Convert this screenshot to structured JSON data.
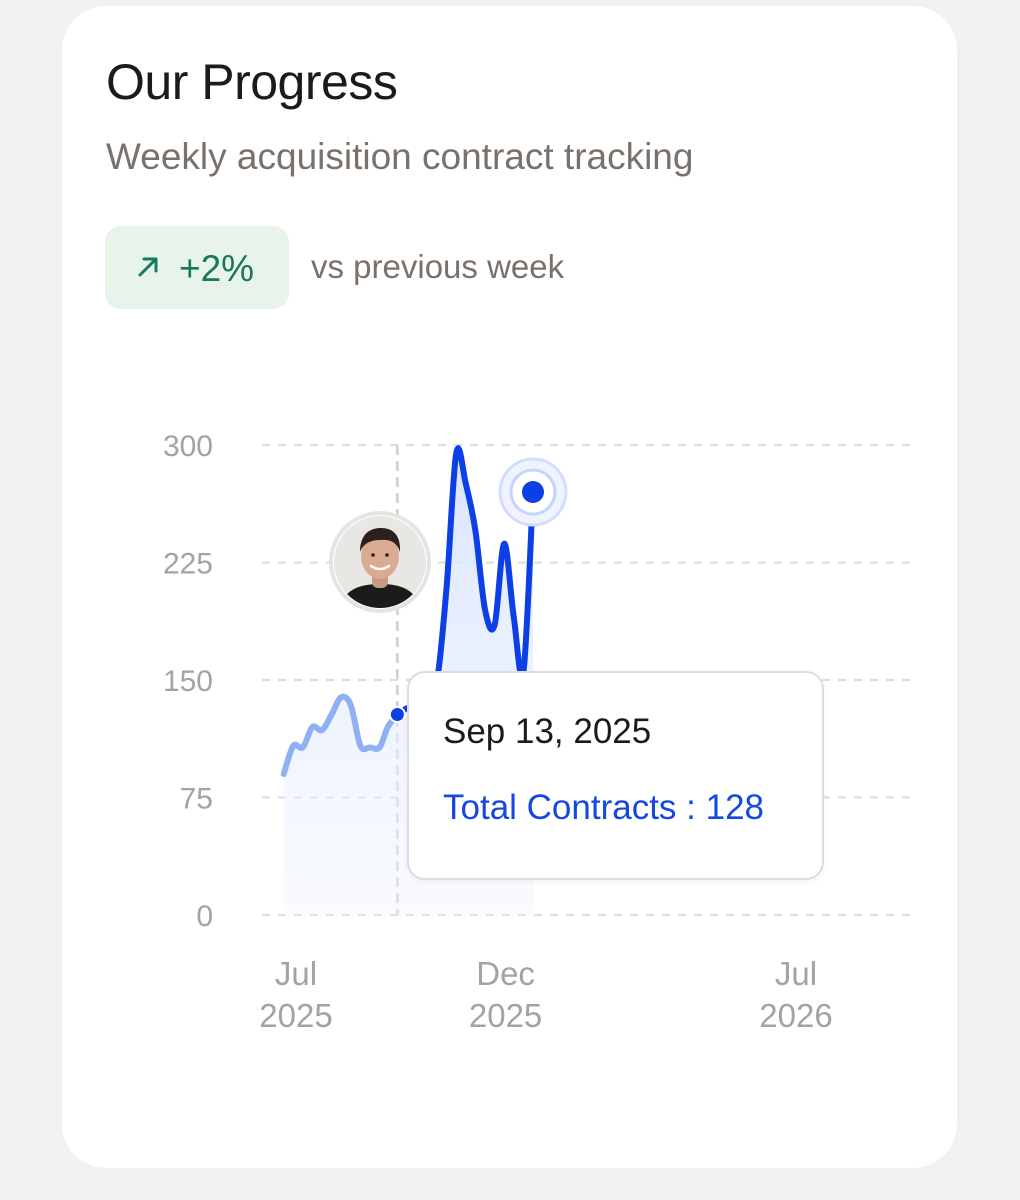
{
  "header": {
    "title": "Our Progress",
    "subtitle": "Weekly acquisition contract tracking"
  },
  "badge": {
    "icon": "arrow-up-right-icon",
    "value": "+2%",
    "color": "#15795a",
    "background": "#e8f3ea",
    "comparison": "vs previous week"
  },
  "tooltip": {
    "date": "Sep 13, 2025",
    "series_label": "Total Contracts",
    "separator": " : ",
    "value": "128"
  },
  "chart_data": {
    "type": "area",
    "title": "",
    "xlabel": "",
    "ylabel": "",
    "ylim": [
      0,
      300
    ],
    "yticks": [
      0,
      75,
      150,
      225,
      300
    ],
    "xlim": [
      "2025-06-15",
      "2026-08-01"
    ],
    "xticks": [
      {
        "x": "2025-07-01",
        "label": [
          "Jul",
          "2025"
        ]
      },
      {
        "x": "2025-12-01",
        "label": [
          "Dec",
          "2025"
        ]
      },
      {
        "x": "2026-07-01",
        "label": [
          "Jul",
          "2026"
        ]
      }
    ],
    "grid": "horizontal-dashed",
    "legend": "none",
    "colors": {
      "line_past": "#8fb0f5",
      "line_current": "#0d3fe6",
      "area_fill": "#dbe6fd",
      "grid": "#dcdcdc",
      "tick_text": "#a3a3a3",
      "hover_line": "#cfcfcf"
    },
    "avatar_icon": "person-avatar-icon",
    "highlight": {
      "x": "2025-09-13",
      "y": 128
    },
    "series": [
      {
        "name": "Total Contracts",
        "points": [
          [
            "2025-06-22",
            90
          ],
          [
            "2025-06-29",
            108
          ],
          [
            "2025-07-06",
            107
          ],
          [
            "2025-07-13",
            120
          ],
          [
            "2025-07-20",
            118
          ],
          [
            "2025-07-27",
            128
          ],
          [
            "2025-08-03",
            139
          ],
          [
            "2025-08-10",
            134
          ],
          [
            "2025-08-17",
            108
          ],
          [
            "2025-08-24",
            107
          ],
          [
            "2025-08-31",
            107
          ],
          [
            "2025-09-06",
            120
          ],
          [
            "2025-09-13",
            128
          ],
          [
            "2025-09-20",
            132
          ],
          [
            "2025-09-27",
            132
          ],
          [
            "2025-10-05",
            142
          ],
          [
            "2025-10-12",
            150
          ],
          [
            "2025-10-19",
            210
          ],
          [
            "2025-10-26",
            295
          ],
          [
            "2025-11-02",
            275
          ],
          [
            "2025-11-09",
            245
          ],
          [
            "2025-11-16",
            195
          ],
          [
            "2025-11-23",
            185
          ],
          [
            "2025-11-30",
            237
          ],
          [
            "2025-12-07",
            190
          ],
          [
            "2025-12-14",
            155
          ],
          [
            "2025-12-21",
            270
          ]
        ]
      }
    ]
  }
}
